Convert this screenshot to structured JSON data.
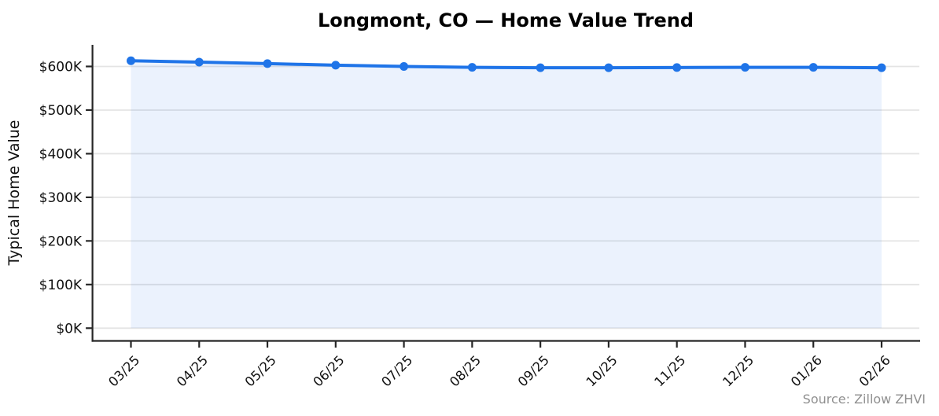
{
  "figure": {
    "title": "Longmont, CO — Home Value Trend",
    "source_note": "Source: Zillow ZHVI"
  },
  "chart_data": {
    "type": "line",
    "title": "Longmont, CO — Home Value Trend",
    "x": [
      "03/25",
      "04/25",
      "05/25",
      "06/25",
      "07/25",
      "08/25",
      "09/25",
      "10/25",
      "11/25",
      "12/25",
      "01/26",
      "02/26"
    ],
    "series": [
      {
        "name": "Typical Home Value",
        "values": [
          613000,
          610000,
          606500,
          603000,
          600000,
          598000,
          597000,
          597000,
          597500,
          598000,
          598000,
          597000
        ]
      }
    ],
    "xlabel": "",
    "ylabel": "Typical Home Value",
    "ylim": [
      0,
      650000
    ],
    "yticks": [
      0,
      100000,
      200000,
      300000,
      400000,
      500000,
      600000
    ],
    "ytick_labels": [
      "$0K",
      "$100K",
      "$200K",
      "$300K",
      "$400K",
      "$500K",
      "$600K"
    ],
    "xtick_rotation_deg": -45,
    "grid": "horizontal",
    "legend": "none",
    "area_fill": true,
    "marker": "circle",
    "source_note": "Source: Zillow ZHVI",
    "colors": {
      "line": "#1f74e8",
      "area_fill": "rgba(31,116,232,0.09)",
      "grid": "#e4e4e4",
      "axis": "#262626",
      "tick_label": "#111111",
      "title": "#000000",
      "source_note": "#8f8f8f"
    }
  }
}
